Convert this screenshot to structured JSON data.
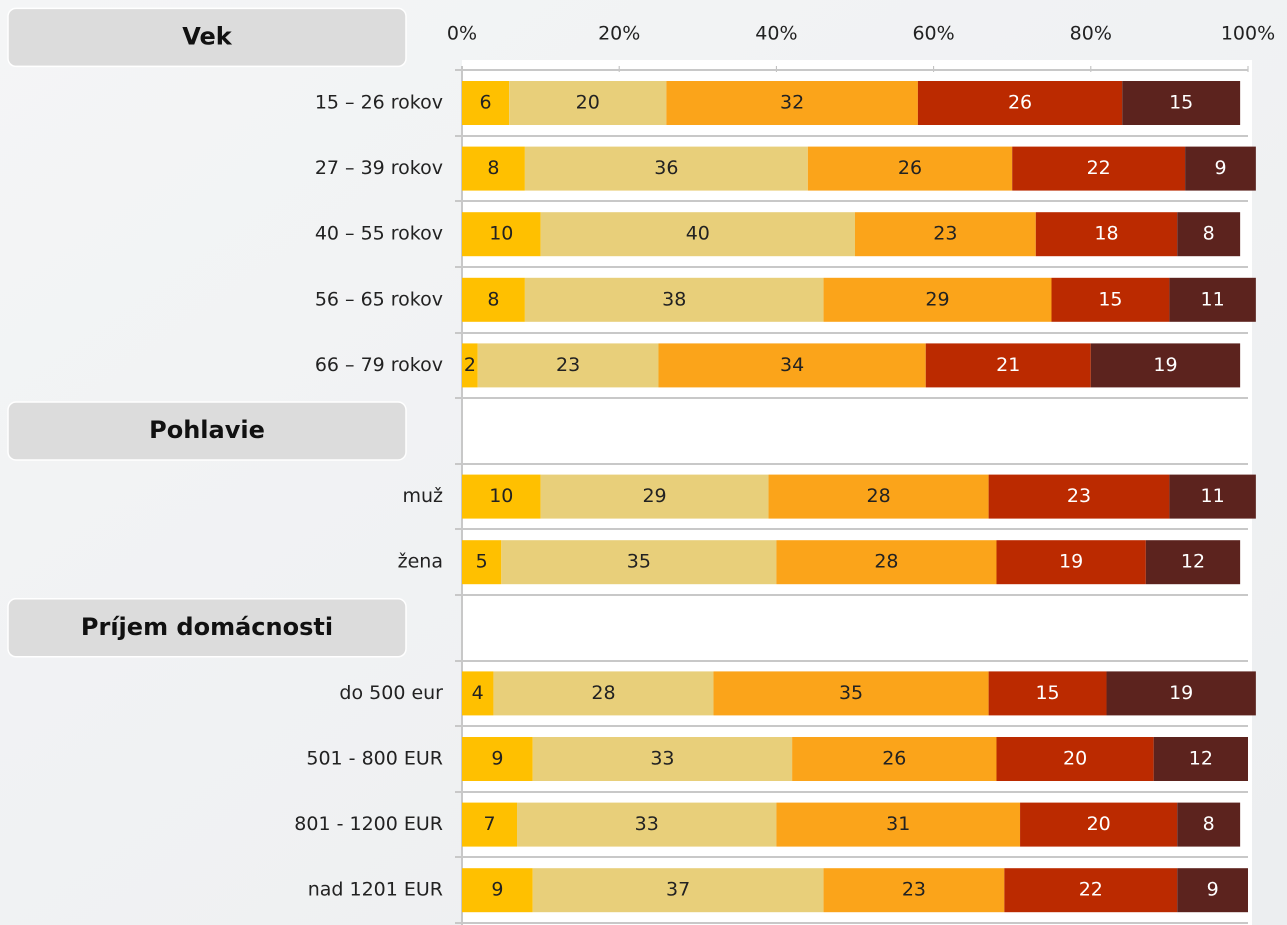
{
  "chart_data": {
    "type": "stacked-bar-horizontal",
    "groups": [
      {
        "name": "Vek",
        "categories": [
          "15 – 26 rokov",
          "27 – 39 rokov",
          "40 – 55 rokov",
          "56 – 65 rokov",
          "66 – 79 rokov"
        ]
      },
      {
        "name": "Pohlavie",
        "categories": [
          "muž",
          "žena"
        ]
      },
      {
        "name": "Príjem domácnosti",
        "categories": [
          "do 500 eur",
          "501 - 800 EUR",
          "801 - 1200 EUR",
          "nad 1201 EUR"
        ]
      }
    ],
    "series": [
      {
        "color": "#FFC000",
        "values": [
          6,
          8,
          10,
          8,
          2,
          10,
          5,
          4,
          9,
          7,
          9
        ]
      },
      {
        "color": "#E8CF7A",
        "values": [
          20,
          36,
          40,
          38,
          23,
          29,
          35,
          28,
          33,
          33,
          37
        ]
      },
      {
        "color": "#FBA41A",
        "values": [
          32,
          26,
          23,
          29,
          34,
          28,
          28,
          35,
          26,
          31,
          23
        ]
      },
      {
        "color": "#BB2A00",
        "values": [
          26,
          22,
          18,
          15,
          21,
          23,
          19,
          15,
          20,
          20,
          22
        ]
      },
      {
        "color": "#5C231E",
        "values": [
          15,
          9,
          8,
          11,
          19,
          11,
          12,
          19,
          12,
          8,
          9
        ]
      }
    ],
    "xlim": [
      0,
      100
    ],
    "xticks": [
      {
        "value": 0,
        "label": "0%"
      },
      {
        "value": 20,
        "label": "20%"
      },
      {
        "value": 40,
        "label": "40%"
      },
      {
        "value": 60,
        "label": "60%"
      },
      {
        "value": 80,
        "label": "80%"
      },
      {
        "value": 100,
        "label": "100%"
      }
    ],
    "grid": true
  }
}
